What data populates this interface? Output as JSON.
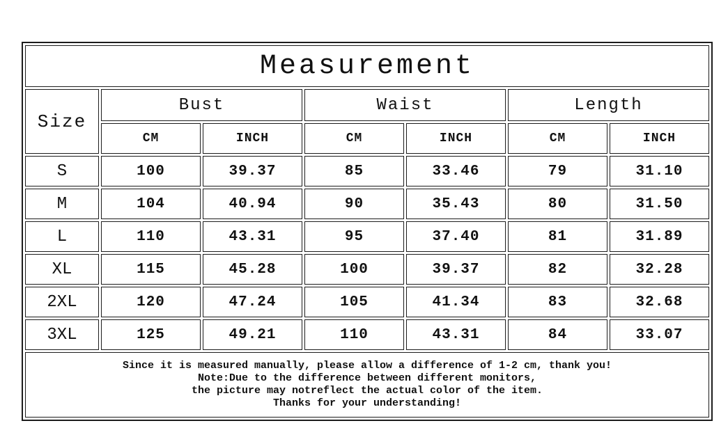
{
  "title": "Measurement",
  "header": {
    "size_label": "Size",
    "groups": [
      {
        "label": "Bust"
      },
      {
        "label": "Waist"
      },
      {
        "label": "Length"
      }
    ],
    "unit_cm": "CM",
    "unit_inch": "INCH"
  },
  "rows": [
    {
      "size": "S",
      "bust_cm": "100",
      "bust_inch": "39.37",
      "waist_cm": "85",
      "waist_inch": "33.46",
      "length_cm": "79",
      "length_inch": "31.10"
    },
    {
      "size": "M",
      "bust_cm": "104",
      "bust_inch": "40.94",
      "waist_cm": "90",
      "waist_inch": "35.43",
      "length_cm": "80",
      "length_inch": "31.50"
    },
    {
      "size": "L",
      "bust_cm": "110",
      "bust_inch": "43.31",
      "waist_cm": "95",
      "waist_inch": "37.40",
      "length_cm": "81",
      "length_inch": "31.89"
    },
    {
      "size": "XL",
      "bust_cm": "115",
      "bust_inch": "45.28",
      "waist_cm": "100",
      "waist_inch": "39.37",
      "length_cm": "82",
      "length_inch": "32.28"
    },
    {
      "size": "2XL",
      "bust_cm": "120",
      "bust_inch": "47.24",
      "waist_cm": "105",
      "waist_inch": "41.34",
      "length_cm": "83",
      "length_inch": "32.68"
    },
    {
      "size": "3XL",
      "bust_cm": "125",
      "bust_inch": "49.21",
      "waist_cm": "110",
      "waist_inch": "43.31",
      "length_cm": "84",
      "length_inch": "33.07"
    }
  ],
  "footer": {
    "lines": [
      "Since it is measured manually, please allow a difference of 1-2 cm, thank you!",
      "Note:Due to the difference between different monitors,",
      "the picture may notreflect the actual color of the item.",
      "Thanks for your understanding!"
    ]
  }
}
